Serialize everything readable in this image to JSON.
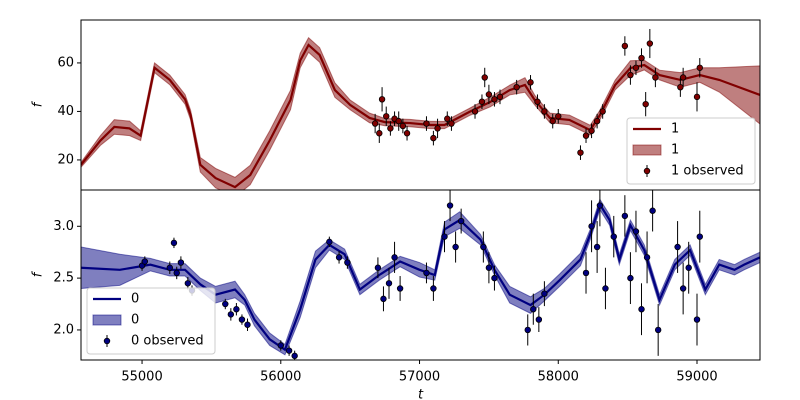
{
  "chart_data": [
    {
      "type": "line",
      "ylabel": "f",
      "xlim": [
        54560,
        59454
      ],
      "ylim": [
        7.6,
        77.7
      ],
      "yticks": [
        20,
        40,
        60
      ],
      "legend": "lower right",
      "x": [
        54560,
        54700,
        54800,
        54910,
        54990,
        55090,
        55200,
        55310,
        55350,
        55420,
        55530,
        55670,
        55780,
        55920,
        56070,
        56140,
        56200,
        56280,
        56390,
        56500,
        56640,
        56750,
        56930,
        57080,
        57180,
        57360,
        57510,
        57650,
        57760,
        57830,
        57940,
        58080,
        58230,
        58300,
        58410,
        58520,
        58620,
        58730,
        58880,
        59020,
        59160,
        59454
      ],
      "series": [
        {
          "name": "1",
          "color": "#800000",
          "values": [
            18,
            28,
            33.6,
            33,
            30,
            58,
            53,
            45,
            38.5,
            18,
            12.5,
            8.8,
            13.8,
            28,
            44.7,
            61,
            67.4,
            63.3,
            48.8,
            42.7,
            37.3,
            35.6,
            35.2,
            34.4,
            34.4,
            39.8,
            43.9,
            48.8,
            50.9,
            44.7,
            37.3,
            36.5,
            32.3,
            38.5,
            50.9,
            57.9,
            59.1,
            55,
            53,
            55,
            53,
            46.8
          ]
        }
      ],
      "band": {
        "name": "1",
        "color": "#800000",
        "lower": [
          17,
          26,
          30.6,
          30,
          28,
          56,
          51,
          43,
          36.5,
          15,
          8.5,
          4.8,
          9.8,
          24,
          40.7,
          58,
          64.4,
          60.3,
          45.8,
          40.7,
          35.3,
          34.1,
          33.7,
          32.9,
          32.9,
          38.3,
          41.9,
          46.8,
          47.9,
          42.7,
          35.3,
          34.5,
          30.3,
          36.5,
          48.9,
          54.9,
          57.1,
          53,
          50,
          52,
          48,
          34.8
        ],
        "upper": [
          19,
          30,
          36.6,
          36,
          32,
          60,
          55,
          47,
          40.5,
          21,
          16.5,
          12.8,
          17.8,
          32,
          48.7,
          64,
          70.4,
          66.3,
          51.8,
          44.7,
          39.3,
          37.1,
          36.7,
          35.9,
          35.9,
          41.3,
          45.9,
          50.8,
          53.9,
          46.7,
          39.3,
          38.5,
          34.3,
          40.5,
          52.9,
          60.9,
          61.1,
          57,
          56,
          58,
          58,
          58.8
        ]
      },
      "observed": {
        "name": "1 observed",
        "color": "#800000",
        "x": [
          56680,
          56710,
          56730,
          56760,
          56790,
          56820,
          56850,
          56880,
          56910,
          57050,
          57100,
          57130,
          57200,
          57230,
          57400,
          57450,
          57470,
          57500,
          57540,
          57580,
          57700,
          57800,
          57850,
          57900,
          57960,
          58000,
          58160,
          58200,
          58240,
          58280,
          58320,
          58480,
          58520,
          58560,
          58600,
          58630,
          58660,
          58700,
          58880,
          58900,
          59000,
          59020
        ],
        "values": [
          35,
          31,
          45,
          38,
          33,
          37,
          36,
          34,
          31,
          35,
          29,
          33,
          37,
          35,
          40,
          44,
          54,
          47,
          45,
          46,
          50,
          52,
          44,
          40,
          36,
          38,
          23,
          30,
          32,
          36,
          40,
          67,
          55,
          58,
          62,
          43,
          68,
          54,
          50,
          54,
          46,
          58
        ],
        "errors": [
          4,
          4,
          5,
          4,
          3,
          3,
          4,
          3,
          3,
          3,
          3,
          4,
          3,
          3,
          3,
          3,
          4,
          4,
          3,
          3,
          3,
          3,
          3,
          3,
          3,
          3,
          3,
          3,
          3,
          3,
          3,
          4,
          4,
          3,
          4,
          5,
          6,
          4,
          4,
          4,
          6,
          4
        ]
      }
    },
    {
      "type": "line",
      "ylabel": "f",
      "xlabel": "t",
      "xlim": [
        54560,
        59454
      ],
      "ylim": [
        1.71,
        3.35
      ],
      "xticks": [
        55000,
        56000,
        57000,
        58000,
        59000
      ],
      "yticks": [
        {
          "value": 2,
          "label": "2.0"
        },
        2.5,
        {
          "value": 3,
          "label": "3.0"
        }
      ],
      "legend": "lower left",
      "x": [
        54560,
        54840,
        55060,
        55200,
        55310,
        55420,
        55530,
        55670,
        55740,
        55810,
        55920,
        56030,
        56140,
        56250,
        56350,
        56460,
        56570,
        56710,
        56860,
        57000,
        57110,
        57180,
        57290,
        57440,
        57540,
        57650,
        57800,
        57900,
        58010,
        58160,
        58230,
        58300,
        58370,
        58440,
        58520,
        58620,
        58730,
        58840,
        58950,
        59060,
        59160,
        59270,
        59340,
        59454
      ],
      "series": [
        {
          "name": "0",
          "color": "#000080",
          "values": [
            2.6,
            2.58,
            2.63,
            2.58,
            2.58,
            2.44,
            2.34,
            2.39,
            2.29,
            2.1,
            1.91,
            1.81,
            2.2,
            2.68,
            2.82,
            2.73,
            2.39,
            2.53,
            2.66,
            2.58,
            2.53,
            2.97,
            3.06,
            2.87,
            2.58,
            2.34,
            2.24,
            2.34,
            2.48,
            2.68,
            2.92,
            3.21,
            3.06,
            2.68,
            3.01,
            2.77,
            2.29,
            2.63,
            2.77,
            2.39,
            2.63,
            2.58,
            2.63,
            2.7
          ]
        }
      ],
      "band": {
        "name": "0",
        "color": "#000080",
        "lower": [
          2.4,
          2.43,
          2.57,
          2.52,
          2.52,
          2.38,
          2.26,
          2.31,
          2.24,
          2.04,
          1.85,
          1.76,
          2.12,
          2.6,
          2.77,
          2.68,
          2.34,
          2.48,
          2.61,
          2.51,
          2.48,
          2.9,
          2.98,
          2.82,
          2.53,
          2.26,
          2.16,
          2.28,
          2.42,
          2.62,
          2.87,
          3.16,
          3.01,
          2.63,
          2.96,
          2.72,
          2.24,
          2.58,
          2.72,
          2.34,
          2.58,
          2.53,
          2.58,
          2.65
        ],
        "upper": [
          2.8,
          2.73,
          2.69,
          2.64,
          2.64,
          2.5,
          2.42,
          2.47,
          2.34,
          2.16,
          1.97,
          1.86,
          2.28,
          2.76,
          2.87,
          2.78,
          2.44,
          2.58,
          2.71,
          2.65,
          2.58,
          3.04,
          3.14,
          2.92,
          2.63,
          2.42,
          2.32,
          2.4,
          2.54,
          2.74,
          2.97,
          3.26,
          3.11,
          2.73,
          3.06,
          2.82,
          2.34,
          2.68,
          2.82,
          2.44,
          2.68,
          2.63,
          2.68,
          2.75
        ]
      },
      "observed": {
        "name": "0 observed",
        "color": "#000080",
        "x": [
          55000,
          55020,
          55200,
          55230,
          55250,
          55280,
          55330,
          55360,
          55600,
          55640,
          55680,
          55720,
          55760,
          56000,
          56060,
          56100,
          56350,
          56420,
          56480,
          56700,
          56740,
          56780,
          56820,
          56860,
          57050,
          57100,
          57180,
          57220,
          57260,
          57300,
          57460,
          57500,
          57540,
          57780,
          57820,
          57860,
          57900,
          58200,
          58240,
          58280,
          58300,
          58340,
          58400,
          58480,
          58520,
          58560,
          58600,
          58640,
          58680,
          58720,
          58860,
          58900,
          58940,
          59000,
          59020
        ],
        "values": [
          2.62,
          2.66,
          2.6,
          2.84,
          2.55,
          2.65,
          2.45,
          2.38,
          2.25,
          2.15,
          2.2,
          2.1,
          2.05,
          1.85,
          1.8,
          1.75,
          2.85,
          2.7,
          2.65,
          2.6,
          2.3,
          2.45,
          2.7,
          2.4,
          2.55,
          2.4,
          2.9,
          3.2,
          2.8,
          3.05,
          2.8,
          2.6,
          2.5,
          2.0,
          2.2,
          2.1,
          2.35,
          2.55,
          3.0,
          2.8,
          3.2,
          2.4,
          2.9,
          3.1,
          2.5,
          2.95,
          2.2,
          2.7,
          3.15,
          2.0,
          2.8,
          2.4,
          2.6,
          2.1,
          2.9
        ],
        "errors": [
          0.05,
          0.05,
          0.06,
          0.05,
          0.06,
          0.06,
          0.06,
          0.05,
          0.05,
          0.06,
          0.06,
          0.05,
          0.06,
          0.05,
          0.05,
          0.05,
          0.05,
          0.06,
          0.06,
          0.1,
          0.12,
          0.15,
          0.15,
          0.12,
          0.1,
          0.12,
          0.15,
          0.15,
          0.15,
          0.12,
          0.15,
          0.15,
          0.12,
          0.15,
          0.15,
          0.12,
          0.12,
          0.2,
          0.25,
          0.25,
          0.2,
          0.2,
          0.2,
          0.2,
          0.25,
          0.2,
          0.25,
          0.25,
          0.2,
          0.25,
          0.25,
          0.25,
          0.25,
          0.25,
          0.25
        ]
      }
    }
  ]
}
